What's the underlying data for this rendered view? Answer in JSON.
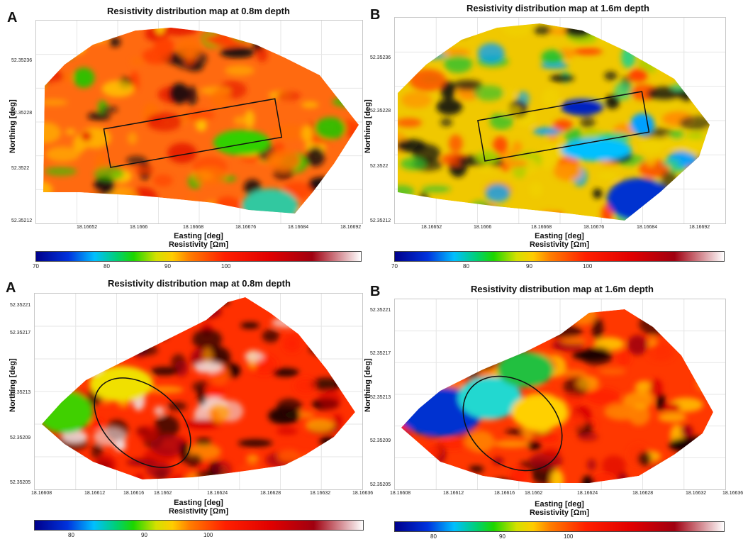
{
  "chart_data": [
    {
      "type": "heatmap",
      "panel_letter": "A",
      "title": "Resistivity distribution map at 0.8m depth",
      "xlabel": "Easting [deg]",
      "ylabel": "Northing [deg]",
      "x_ticks": [
        "18.16652",
        "18.1666",
        "18.16668",
        "18.16676",
        "18.16684",
        "18.16692"
      ],
      "y_ticks": [
        "52.35236",
        "52.35228",
        "52.3522",
        "52.35212"
      ],
      "colorbar_label": "Resistivity [Ωm]",
      "colorbar_ticks": [
        "70",
        "80",
        "90",
        "100"
      ],
      "annotation": "rectangle",
      "dominant_range": "high (orange-red)"
    },
    {
      "type": "heatmap",
      "panel_letter": "B",
      "title": "Resistivity distribution map at 1.6m depth",
      "xlabel": "Easting [deg]",
      "ylabel": "Northing [deg]",
      "x_ticks": [
        "18.16652",
        "18.1666",
        "18.16668",
        "18.16676",
        "18.16684",
        "18.16692"
      ],
      "y_ticks": [
        "52.35236",
        "52.35228",
        "52.3522",
        "52.35212"
      ],
      "colorbar_label": "Resistivity [Ωm]",
      "colorbar_ticks": [
        "70",
        "80",
        "90",
        "100"
      ],
      "annotation": "rectangle",
      "dominant_range": "mixed (yellow-green)"
    },
    {
      "type": "heatmap",
      "panel_letter": "A",
      "title": "Resistivity distribution map at 0.8m depth",
      "xlabel": "Easting [deg]",
      "ylabel": "Northing [deg]",
      "x_ticks": [
        "18.16608",
        "18.16612",
        "18.16616",
        "18.1662",
        "18.16624",
        "18.16628",
        "18.16632",
        "18.16636"
      ],
      "y_ticks": [
        "52.35221",
        "52.35217",
        "52.35213",
        "52.35209",
        "52.35205"
      ],
      "colorbar_label": "Resistivity [Ωm]",
      "colorbar_ticks": [
        "80",
        "90",
        "100"
      ],
      "annotation": "ellipse",
      "dominant_range": "high (red)"
    },
    {
      "type": "heatmap",
      "panel_letter": "B",
      "title": "Resistivity distribution map at 1.6m depth",
      "xlabel": "Easting [deg]",
      "ylabel": "Northing [deg]",
      "x_ticks": [
        "18.16608",
        "18.16612",
        "18.16616",
        "18.1662",
        "18.16624",
        "18.16628",
        "18.16632",
        "18.16636"
      ],
      "y_ticks": [
        "52.35221",
        "52.35217",
        "52.35213",
        "52.35209",
        "52.35205"
      ],
      "colorbar_label": "Resistivity [Ωm]",
      "colorbar_ticks": [
        "80",
        "90",
        "100"
      ],
      "annotation": "ellipse",
      "dominant_range": "mixed (blue-green to red)"
    }
  ]
}
